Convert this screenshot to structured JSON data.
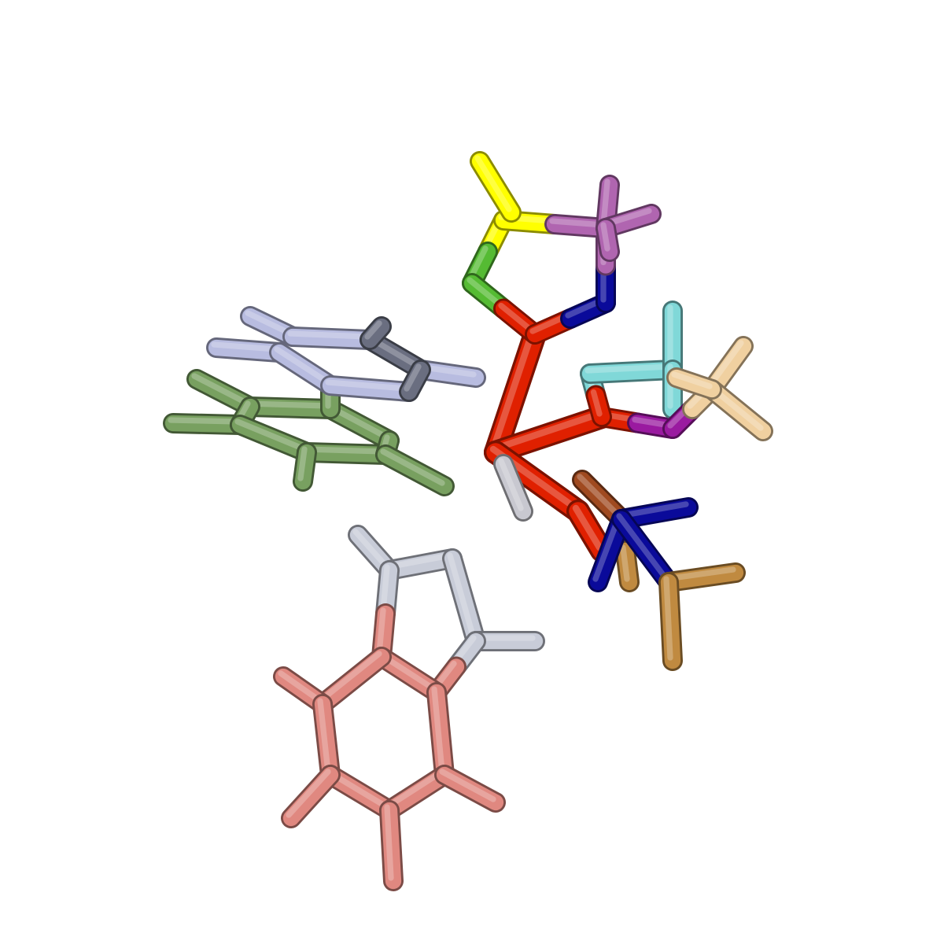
{
  "scene": {
    "background": "#ffffff",
    "style": "sticks"
  },
  "fragments": [
    {
      "name": "ring-yellow-magenta",
      "colors": [
        "#ffff00",
        "#b065b0",
        "#0a0a9a",
        "#e02000",
        "#55bb33"
      ]
    },
    {
      "name": "backbone-red",
      "colors": [
        "#e02000"
      ]
    },
    {
      "name": "cyan-wheat-group",
      "colors": [
        "#80d8d8",
        "#f0d0a0",
        "#9a1aa0"
      ]
    },
    {
      "name": "blue-orange-group",
      "colors": [
        "#0a0a9a",
        "#c08a40",
        "#a04a20"
      ]
    },
    {
      "name": "lavender-ring",
      "colors": [
        "#b8bce0",
        "#6a6e80"
      ]
    },
    {
      "name": "green-ring",
      "colors": [
        "#78a060"
      ]
    },
    {
      "name": "indole-ring",
      "colors": [
        "#e08880",
        "#c8ccd8"
      ]
    }
  ]
}
